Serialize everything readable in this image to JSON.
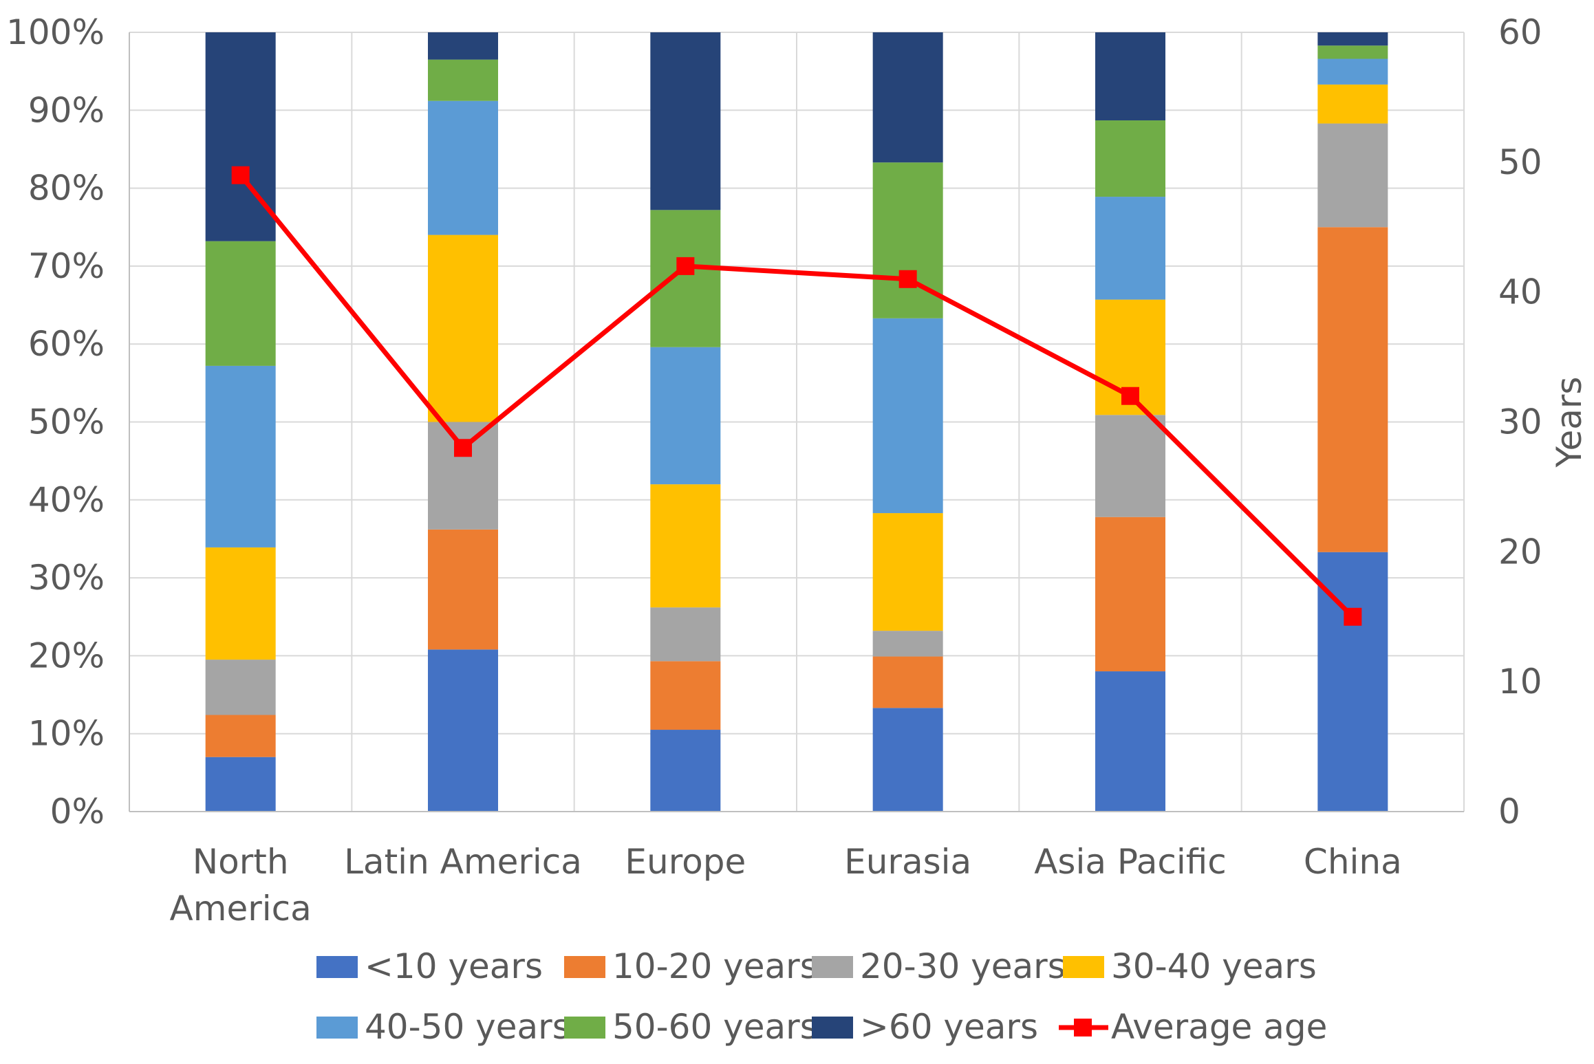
{
  "chart_data": {
    "type": "bar",
    "stacked": true,
    "normalized": true,
    "title": "",
    "categories": [
      [
        "North",
        "America"
      ],
      [
        "Latin America"
      ],
      [
        "Europe"
      ],
      [
        "Eurasia"
      ],
      [
        "Asia Pacific"
      ],
      [
        "China"
      ]
    ],
    "y_left": {
      "min": 0,
      "max": 100,
      "step": 10,
      "suffix": "%",
      "label": ""
    },
    "y_right": {
      "min": 0,
      "max": 60,
      "step": 10,
      "label": "Years"
    },
    "grid": true,
    "legend_position": "bottom",
    "series": [
      {
        "name": "<10 years",
        "color": "#4472C4",
        "values": [
          7,
          20.8,
          10.5,
          13.3,
          18,
          33.3
        ]
      },
      {
        "name": "10-20 years",
        "color": "#ED7D31",
        "values": [
          5.4,
          15.4,
          8.8,
          6.6,
          19.8,
          41.7
        ]
      },
      {
        "name": "20-30 years",
        "color": "#A5A5A5",
        "values": [
          7.1,
          13.8,
          6.9,
          3.3,
          13.1,
          13.3
        ]
      },
      {
        "name": "30-40 years",
        "color": "#FFC000",
        "values": [
          14.4,
          24,
          15.8,
          15.1,
          14.8,
          5
        ]
      },
      {
        "name": "40-50 years",
        "color": "#5B9BD5",
        "values": [
          23.3,
          17.2,
          17.6,
          25,
          13.2,
          3.3
        ]
      },
      {
        "name": "50-60 years",
        "color": "#70AD47",
        "values": [
          16,
          5.3,
          17.6,
          20,
          9.8,
          1.7
        ]
      },
      {
        "name": ">60 years",
        "color": "#264478",
        "values": [
          26.8,
          3.5,
          22.8,
          16.7,
          11.3,
          1.7
        ]
      }
    ],
    "line_series": {
      "name": "Average age",
      "color": "#FF0000",
      "axis": "right",
      "values": [
        49,
        28,
        42,
        41,
        32,
        15
      ]
    }
  }
}
